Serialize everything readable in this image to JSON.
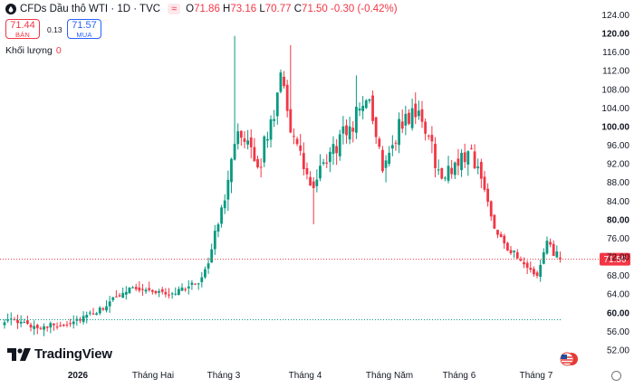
{
  "header": {
    "symbol": "CFDs Dầu thô WTI · 1D · TVC",
    "o_label": "O",
    "o": "71.86",
    "h_label": "H",
    "h": "73.16",
    "l_label": "L",
    "l": "70.77",
    "c_label": "C",
    "c": "71.50",
    "change": "-0.30 (-0.42%)"
  },
  "trade": {
    "sell_price": "71.44",
    "sell_label": "BÁN",
    "spread": "0.13",
    "buy_price": "71.57",
    "buy_label": "MUA"
  },
  "volume": {
    "label": "Khối lượng",
    "value": "0"
  },
  "brand": {
    "name": "TradingView"
  },
  "colors": {
    "up": "#089981",
    "down": "#f23645",
    "text": "#131722",
    "buy": "#2962ff"
  },
  "chart_data": {
    "type": "candlestick",
    "series_name": "CFDs Dầu thô WTI",
    "interval": "1D",
    "y_ticks": [
      "52.00",
      "56.00",
      "60.00",
      "64.00",
      "68.00",
      "72.00",
      "76.00",
      "80.00",
      "84.00",
      "88.00",
      "92.00",
      "96.00",
      "100.00",
      "104.00",
      "108.00",
      "112.00",
      "116.00",
      "120.00",
      "124.00"
    ],
    "ylim": [
      50,
      125
    ],
    "x_labels": [
      "2026",
      "Tháng Hai",
      "Tháng 3",
      "Tháng 4",
      "Tháng Năm",
      "Tháng 6",
      "Tháng 7"
    ],
    "last_price": "71.50",
    "reference_level": 58.5,
    "close_path": [
      {
        "day": 0,
        "close": 58.5
      },
      {
        "day": 10,
        "close": 57.0
      },
      {
        "day": 18,
        "close": 57.5
      },
      {
        "day": 28,
        "close": 60.0
      },
      {
        "day": 38,
        "close": 65.5
      },
      {
        "day": 50,
        "close": 64.0
      },
      {
        "day": 59,
        "close": 66.5
      },
      {
        "day": 62,
        "close": 71.0
      },
      {
        "day": 66,
        "close": 82.0
      },
      {
        "day": 70,
        "close": 98.0
      },
      {
        "day": 74,
        "close": 95.0
      },
      {
        "day": 77,
        "close": 91.0
      },
      {
        "day": 82,
        "close": 103.0
      },
      {
        "day": 84,
        "close": 113.0
      },
      {
        "day": 87,
        "close": 100.0
      },
      {
        "day": 90,
        "close": 93.0
      },
      {
        "day": 94,
        "close": 86.0
      },
      {
        "day": 98,
        "close": 93.0
      },
      {
        "day": 102,
        "close": 97.0
      },
      {
        "day": 106,
        "close": 101.0
      },
      {
        "day": 110,
        "close": 107.0
      },
      {
        "day": 115,
        "close": 92.0
      },
      {
        "day": 120,
        "close": 100.0
      },
      {
        "day": 124,
        "close": 103.0
      },
      {
        "day": 128,
        "close": 100.0
      },
      {
        "day": 133,
        "close": 88.0
      },
      {
        "day": 138,
        "close": 93.0
      },
      {
        "day": 142,
        "close": 95.0
      },
      {
        "day": 146,
        "close": 86.0
      },
      {
        "day": 149,
        "close": 79.0
      },
      {
        "day": 153,
        "close": 74.0
      },
      {
        "day": 158,
        "close": 70.0
      },
      {
        "day": 162,
        "close": 68.0
      },
      {
        "day": 165,
        "close": 74.5
      },
      {
        "day": 169,
        "close": 71.5
      }
    ],
    "spikes": [
      {
        "day": 70,
        "high": 119.5
      },
      {
        "day": 87,
        "high": 117.5
      },
      {
        "day": 94,
        "low": 79.0
      },
      {
        "day": 107,
        "high": 111.0
      },
      {
        "day": 116,
        "low": 88.0
      }
    ]
  }
}
